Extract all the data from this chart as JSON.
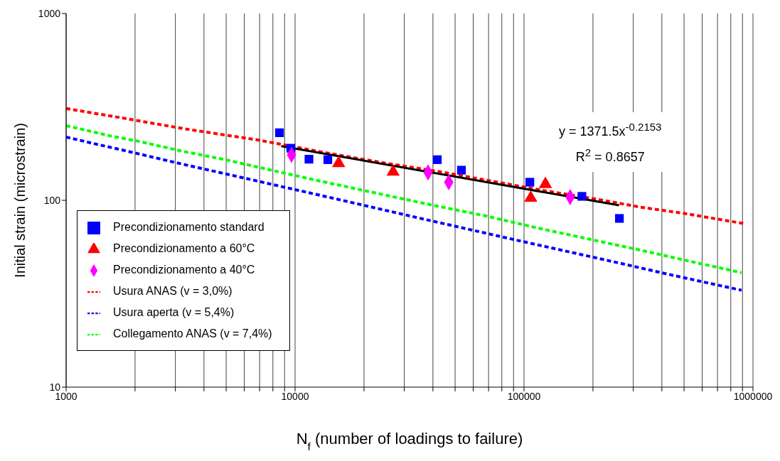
{
  "chart_data": {
    "type": "scatter",
    "xlabel": "N$_{f}$ (number of loadings to failure)",
    "ylabel": "Initial strain (microstrain)",
    "log": "xy",
    "grid": "x",
    "legend": "bottom left",
    "xlim": [
      1000,
      1000000
    ],
    "ylim": [
      10,
      1000
    ],
    "xticks": [
      1000,
      {
        "value": 2000,
        "label": null
      },
      {
        "value": 3000,
        "label": null
      },
      {
        "value": 4000,
        "label": null
      },
      {
        "value": 5000,
        "label": null
      },
      {
        "value": 6000,
        "label": null
      },
      {
        "value": 7000,
        "label": null
      },
      {
        "value": 8000,
        "label": null
      },
      {
        "value": 9000,
        "label": null
      },
      10000,
      {
        "value": 20000,
        "label": null
      },
      {
        "value": 30000,
        "label": null
      },
      {
        "value": 40000,
        "label": null
      },
      {
        "value": 50000,
        "label": null
      },
      {
        "value": 60000,
        "label": null
      },
      {
        "value": 70000,
        "label": null
      },
      {
        "value": 80000,
        "label": null
      },
      {
        "value": 90000,
        "label": null
      },
      100000,
      {
        "value": 200000,
        "label": null
      },
      {
        "value": 300000,
        "label": null
      },
      {
        "value": 400000,
        "label": null
      },
      {
        "value": 500000,
        "label": null
      },
      {
        "value": 600000,
        "label": null
      },
      {
        "value": 700000,
        "label": null
      },
      {
        "value": 800000,
        "label": null
      },
      {
        "value": 900000,
        "label": null
      },
      1000000
    ],
    "yticks": [
      10,
      100,
      1000
    ],
    "annotations": [
      "y = 1371.5x$^{-0.2153}$",
      "R$^{2}$ = 0.8657"
    ],
    "series": [
      {
        "name": "Precondizionamento standard",
        "marker": "square",
        "color": "#0000ff",
        "x": [
          8550,
          9580,
          11500,
          13900,
          41800,
          53300,
          106000,
          179000,
          261000
        ],
        "values": [
          230,
          190,
          166,
          165,
          165,
          145,
          125,
          105,
          80
        ]
      },
      {
        "name": "Precondizionamento a 60°C",
        "marker": "triangle",
        "color": "#ff0000",
        "x": [
          15500,
          26800,
          107000,
          124000
        ],
        "values": [
          158,
          142,
          103,
          122
        ]
      },
      {
        "name": "Precondizionamento a 40°C",
        "marker": "diamond",
        "color": "#ff00ff",
        "x": [
          9650,
          38100,
          46900,
          159000
        ],
        "values": [
          175,
          141,
          125,
          104
        ]
      },
      {
        "name": "Usura ANAS (v = 3,0%)",
        "type": "line",
        "marker": "none",
        "line_style": "dashed",
        "color": "#ff0000",
        "x": [
          1000,
          1820,
          3250,
          6950,
          13500,
          24100,
          43300,
          116000,
          212000,
          321000,
          503000,
          918000
        ],
        "values": [
          310,
          274,
          242,
          210,
          180,
          159,
          142,
          114,
          101,
          92,
          85,
          75
        ]
      },
      {
        "name": "Usura aperta (v = 5,4%)",
        "type": "line",
        "marker": "none",
        "line_style": "dashed",
        "color": "#0000ff",
        "x": [
          1000,
          1350,
          1790,
          3230,
          5770,
          8850,
          13500,
          37000,
          88500,
          244000,
          434000,
          892000
        ],
        "values": [
          218,
          200,
          185,
          156,
          133,
          118,
          105,
          79,
          62,
          47,
          40,
          33
        ]
      },
      {
        "name": "Collegamento ANAS (v = 7,4%)",
        "type": "line",
        "marker": "none",
        "line_style": "dashed",
        "color": "#00ff00",
        "x": [
          1000,
          1540,
          2070,
          3230,
          4960,
          7680,
          11700,
          18000,
          37000,
          66500,
          115000,
          181000,
          325000,
          581000,
          892000
        ],
        "values": [
          251,
          222,
          207,
          183,
          165,
          146,
          130,
          116,
          96,
          83,
          71,
          63,
          54,
          46,
          41
        ]
      },
      {
        "type": "line",
        "marker": "none",
        "line_style": "solid",
        "color": "#000000",
        "x": [
          8700,
          260000
        ],
        "values": [
          195,
          94
        ]
      }
    ]
  }
}
